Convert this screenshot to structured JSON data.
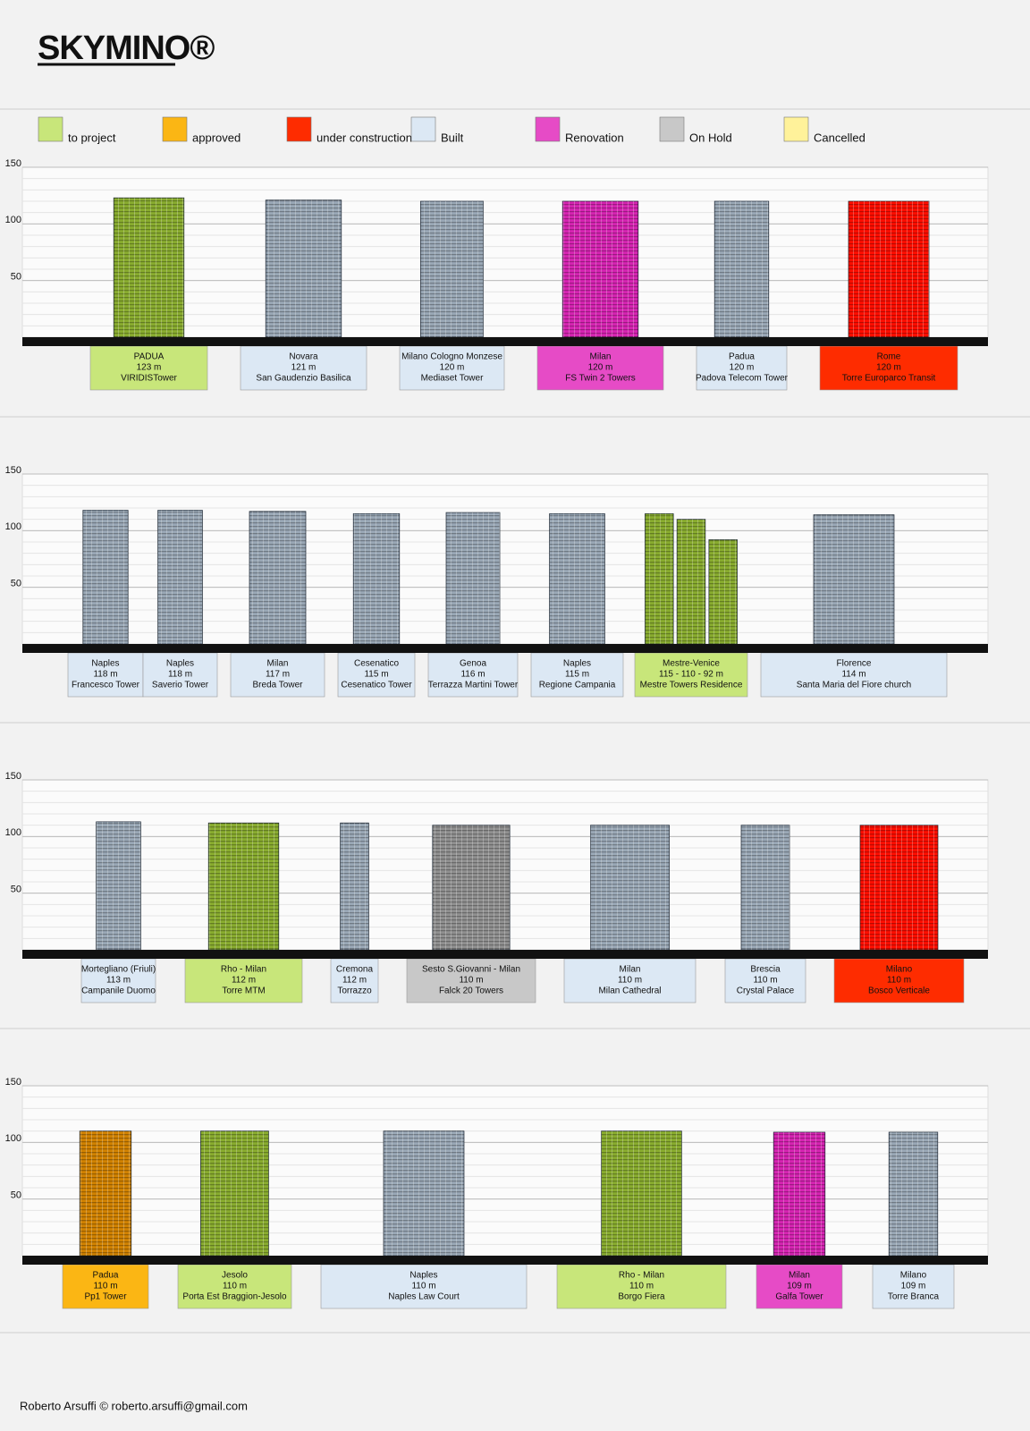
{
  "logo": "SKYMINO®",
  "legend": [
    {
      "name": "to project",
      "color": "#c8e67a"
    },
    {
      "name": "approved",
      "color": "#fbb614"
    },
    {
      "name": "under construction",
      "color": "#fe2c00"
    },
    {
      "name": "Built",
      "color": "#dce8f4"
    },
    {
      "name": "Renovation",
      "color": "#e64bc6"
    },
    {
      "name": "On Hold",
      "color": "#c8c8c8"
    },
    {
      "name": "Cancelled",
      "color": "#fff29a"
    }
  ],
  "chart_data": [
    {
      "type": "bar",
      "ylim": [
        0,
        150
      ],
      "yticks": [
        50,
        100,
        150
      ],
      "grid": true,
      "cities": [
        "PADUA",
        "Novara",
        "Milano Cologno Monzese",
        "Milan",
        "Padua",
        "Rome"
      ],
      "names": [
        "VIRIDISTower",
        "San Gaudenzio Basilica",
        "Mediaset Tower",
        "FS Twin 2 Towers",
        "Padova Telecom Tower",
        "Torre Europarco Transit"
      ],
      "values": [
        123,
        121,
        120,
        120,
        120,
        120
      ],
      "value_labels": [
        "123 m",
        "121 m",
        "120 m",
        "120 m",
        "120 m",
        "120 m"
      ],
      "colors": [
        "#c8e67a",
        "#dce8f4",
        "#dce8f4",
        "#e64bc6",
        "#dce8f4",
        "#fe2c00"
      ]
    },
    {
      "type": "bar",
      "ylim": [
        0,
        150
      ],
      "yticks": [
        50,
        100,
        150
      ],
      "grid": true,
      "cities": [
        "Naples",
        "Naples",
        "Milan",
        "Cesenatico",
        "Genoa",
        "Naples",
        "Mestre-Venice",
        "Florence"
      ],
      "names": [
        "Francesco Tower",
        "Saverio Tower",
        "Breda Tower",
        "Cesenatico Tower",
        "Terrazza Martini Tower",
        "Regione Campania",
        "Mestre Towers Residence",
        "Santa Maria del Fiore church"
      ],
      "values": [
        118,
        118,
        117,
        115,
        116,
        115,
        [
          115,
          110,
          92
        ],
        114
      ],
      "value_labels": [
        "118 m",
        "118 m",
        "117 m",
        "115 m",
        "116 m",
        "115 m",
        "115 - 110 - 92 m",
        "114 m"
      ],
      "colors": [
        "#dce8f4",
        "#dce8f4",
        "#dce8f4",
        "#dce8f4",
        "#dce8f4",
        "#dce8f4",
        "#c8e67a",
        "#dce8f4"
      ]
    },
    {
      "type": "bar",
      "ylim": [
        0,
        150
      ],
      "yticks": [
        50,
        100,
        150
      ],
      "grid": true,
      "cities": [
        "Mortegliano (Friuli)",
        "Rho - Milan",
        "Cremona",
        "Sesto S.Giovanni - Milan",
        "Milan",
        "Brescia",
        "Milano"
      ],
      "names": [
        "Campanile Duomo",
        "Torre MTM",
        "Torrazzo",
        "Falck 20 Towers",
        "Milan Cathedral",
        "Crystal Palace",
        "Bosco Verticale"
      ],
      "values": [
        113,
        112,
        112,
        110,
        110,
        110,
        110
      ],
      "value_labels": [
        "113 m",
        "112 m",
        "112 m",
        "110 m",
        "110 m",
        "110 m",
        "110 m"
      ],
      "colors": [
        "#dce8f4",
        "#c8e67a",
        "#dce8f4",
        "#c8c8c8",
        "#dce8f4",
        "#dce8f4",
        "#fe2c00"
      ]
    },
    {
      "type": "bar",
      "ylim": [
        0,
        150
      ],
      "yticks": [
        50,
        100,
        150
      ],
      "grid": true,
      "cities": [
        "Padua",
        "Jesolo",
        "Naples",
        "Rho - Milan",
        "Milan",
        "Milano"
      ],
      "names": [
        "Pp1 Tower",
        "Porta Est Braggion-Jesolo",
        "Naples Law Court",
        "Borgo Fiera",
        "Galfa Tower",
        "Torre Branca"
      ],
      "values": [
        110,
        110,
        110,
        110,
        109,
        109
      ],
      "value_labels": [
        "110 m",
        "110 m",
        "110 m",
        "110 m",
        "109 m",
        "109 m"
      ],
      "colors": [
        "#fbb614",
        "#c8e67a",
        "#dce8f4",
        "#c8e67a",
        "#e64bc6",
        "#dce8f4"
      ]
    }
  ],
  "footer": "Roberto Arsuffi © roberto.arsuffi@gmail.com"
}
